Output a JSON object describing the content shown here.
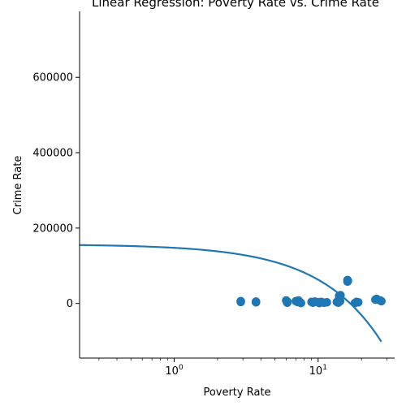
{
  "chart_data": {
    "type": "scatter",
    "title": "Linear Regression: Poverty Rate vs. Crime Rate",
    "xlabel": "Poverty Rate",
    "ylabel": "Crime Rate",
    "x_scale": "log",
    "xlim": [
      0.22,
      34
    ],
    "ylim": [
      -145000,
      775000
    ],
    "grid": false,
    "legend": "none",
    "x_ticks": [
      {
        "value": 1,
        "base": "10",
        "exp": "0"
      },
      {
        "value": 10,
        "base": "10",
        "exp": "1"
      }
    ],
    "y_ticks": [
      {
        "value": 0,
        "label": "0"
      },
      {
        "value": 200000,
        "label": "200000"
      },
      {
        "value": 400000,
        "label": "400000"
      },
      {
        "value": 600000,
        "label": "600000"
      }
    ],
    "point_color": "#1f77b4",
    "line_color": "#1f77b4",
    "points": [
      {
        "x": 2.9,
        "y": 6000
      },
      {
        "x": 2.9,
        "y": 4000
      },
      {
        "x": 3.7,
        "y": 5000
      },
      {
        "x": 3.7,
        "y": 3000
      },
      {
        "x": 6.0,
        "y": 8000
      },
      {
        "x": 6.1,
        "y": 5000
      },
      {
        "x": 6.1,
        "y": 2000
      },
      {
        "x": 7.0,
        "y": 6000
      },
      {
        "x": 7.2,
        "y": 4000
      },
      {
        "x": 7.3,
        "y": 8000
      },
      {
        "x": 7.5,
        "y": 3000
      },
      {
        "x": 7.6,
        "y": 1000
      },
      {
        "x": 9.0,
        "y": 4000
      },
      {
        "x": 9.2,
        "y": 2000
      },
      {
        "x": 9.5,
        "y": 5000
      },
      {
        "x": 10.0,
        "y": 3000
      },
      {
        "x": 10.2,
        "y": 1000
      },
      {
        "x": 10.5,
        "y": 4000
      },
      {
        "x": 11.0,
        "y": 2000
      },
      {
        "x": 11.5,
        "y": 3000
      },
      {
        "x": 13.5,
        "y": 4000
      },
      {
        "x": 13.8,
        "y": 2000
      },
      {
        "x": 14.0,
        "y": 10000
      },
      {
        "x": 14.0,
        "y": 20000
      },
      {
        "x": 14.2,
        "y": 6000
      },
      {
        "x": 14.3,
        "y": 22000
      },
      {
        "x": 16.0,
        "y": 58000
      },
      {
        "x": 16.0,
        "y": 62000
      },
      {
        "x": 16.1,
        "y": 60000
      },
      {
        "x": 18.0,
        "y": 1000
      },
      {
        "x": 18.5,
        "y": 4000
      },
      {
        "x": 19.0,
        "y": 3000
      },
      {
        "x": 25.0,
        "y": 10000
      },
      {
        "x": 25.5,
        "y": 12000
      },
      {
        "x": 27.0,
        "y": 8000
      },
      {
        "x": 27.5,
        "y": 6000
      }
    ],
    "regression": {
      "intercept": 157000,
      "slope": -9400,
      "x_start": 0.22,
      "x_end": 27.5
    }
  }
}
